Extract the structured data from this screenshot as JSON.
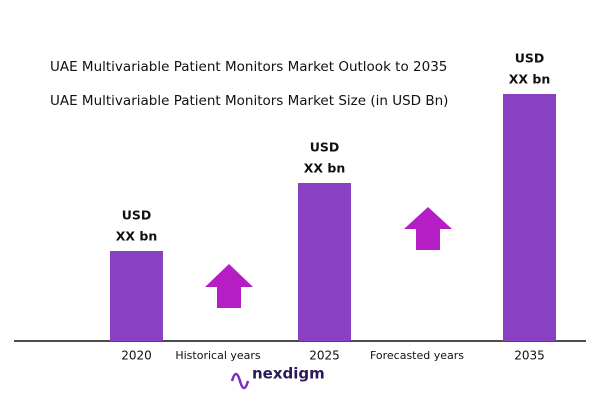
{
  "chart_data": {
    "type": "bar",
    "title": "UAE Multivariable Patient Monitors Market Outlook to 2035",
    "subtitle": "UAE Multivariable Patient Monitors Market Size (in USD Bn)",
    "categories": [
      "2020",
      "2025",
      "2035"
    ],
    "values": [
      90,
      158,
      247
    ],
    "value_labels": [
      [
        "USD",
        "XX bn"
      ],
      [
        "USD",
        "XX bn"
      ],
      [
        "USD",
        "XX bn"
      ]
    ],
    "color": "#8a40c2",
    "annotations": [
      "Historical years",
      "Forecasted years"
    ],
    "logo": "nexdigm"
  }
}
